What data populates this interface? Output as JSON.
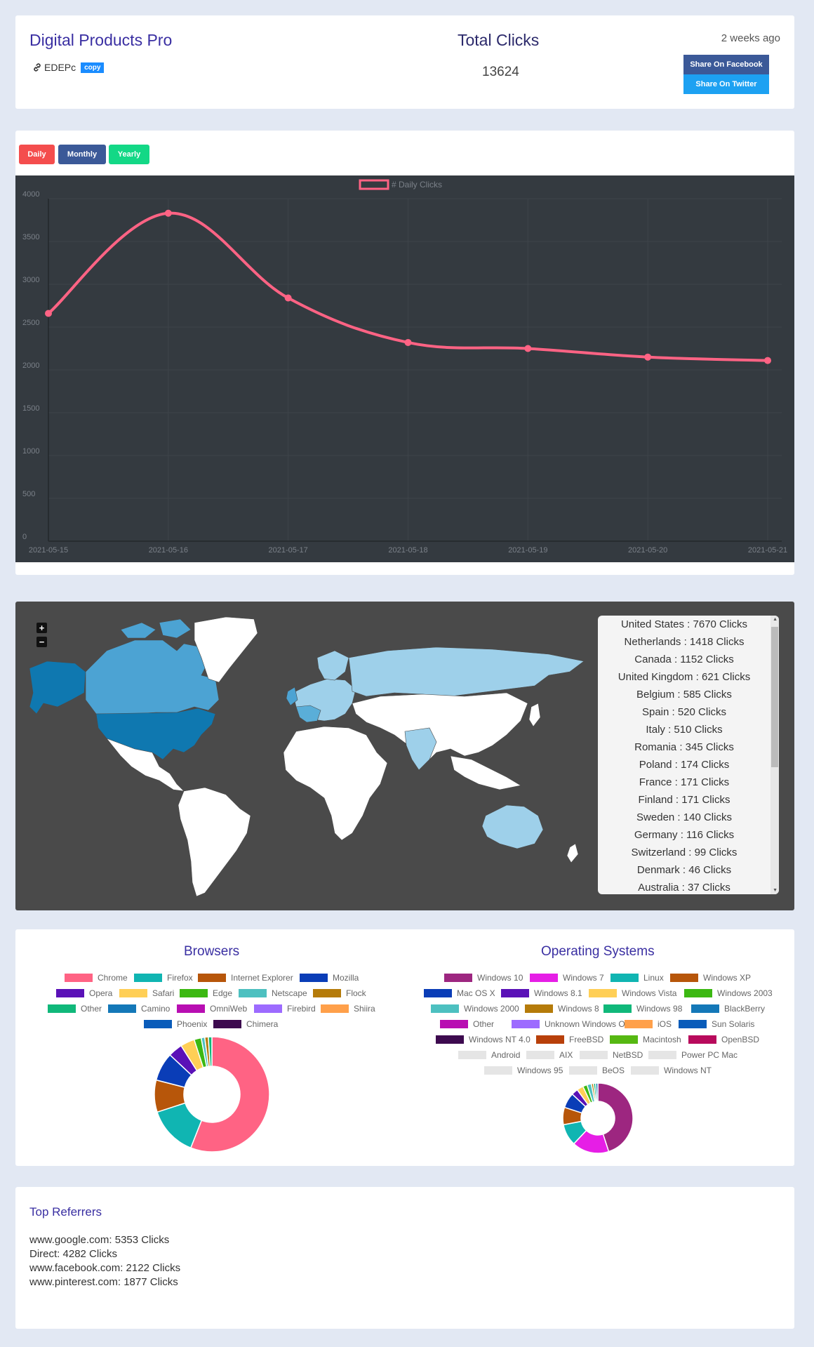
{
  "header": {
    "app_title": "Digital Products Pro",
    "short_code": "EDEPc",
    "copy_label": "copy",
    "total_title": "Total Clicks",
    "total_value": "13624",
    "time_ago": "2 weeks ago",
    "share_facebook": "Share On Facebook",
    "share_twitter": "Share On Twitter"
  },
  "period_tabs": {
    "daily": "Daily",
    "monthly": "Monthly",
    "yearly": "Yearly"
  },
  "chart_data": {
    "type": "line",
    "legend": "# Daily Clicks",
    "x": [
      "2021-05-15",
      "2021-05-16",
      "2021-05-17",
      "2021-05-18",
      "2021-05-19",
      "2021-05-20",
      "2021-05-21"
    ],
    "series": [
      {
        "name": "# Daily Clicks",
        "values": [
          2660,
          3830,
          2840,
          2320,
          2250,
          2150,
          2110
        ]
      }
    ],
    "yticks": [
      0,
      500,
      1000,
      1500,
      2000,
      2500,
      3000,
      3500,
      4000
    ],
    "ylim": [
      0,
      4000
    ],
    "grid": true,
    "line_color": "#ff6384",
    "background": "#343a40"
  },
  "map": {
    "zoom_in": "+",
    "zoom_out": "−",
    "countries": [
      "United States : 7670 Clicks",
      "Netherlands : 1418 Clicks",
      "Canada : 1152 Clicks",
      "United Kingdom : 621 Clicks",
      "Belgium : 585 Clicks",
      "Spain : 520 Clicks",
      "Italy : 510 Clicks",
      "Romania : 345 Clicks",
      "Poland : 174 Clicks",
      "France : 171 Clicks",
      "Finland : 171 Clicks",
      "Sweden : 140 Clicks",
      "Germany : 116 Clicks",
      "Switzerland : 99 Clicks",
      "Denmark : 46 Clicks",
      "Australia : 37 Clicks"
    ]
  },
  "browsers": {
    "title": "Browsers",
    "legend": [
      {
        "label": "Chrome",
        "color": "#ff6384"
      },
      {
        "label": "Firefox",
        "color": "#10b5b2"
      },
      {
        "label": "Internet Explorer",
        "color": "#b7560a"
      },
      {
        "label": "Mozilla",
        "color": "#0a3db7"
      },
      {
        "label": "Opera",
        "color": "#5a11b7"
      },
      {
        "label": "Safari",
        "color": "#ffcf56"
      },
      {
        "label": "Edge",
        "color": "#3cb812"
      },
      {
        "label": "Netscape",
        "color": "#4dc0c0"
      },
      {
        "label": "Flock",
        "color": "#b57b0a"
      },
      {
        "label": "Other",
        "color": "#10b87a"
      },
      {
        "label": "Camino",
        "color": "#1478b8"
      },
      {
        "label": "OmniWeb",
        "color": "#b80eb2"
      },
      {
        "label": "Firebird",
        "color": "#9d6bff"
      },
      {
        "label": "Shiira",
        "color": "#ffa04a"
      },
      {
        "label": "Phoenix",
        "color": "#0a5cba"
      },
      {
        "label": "Chimera",
        "color": "#3d0a4f"
      }
    ],
    "values": [
      56,
      14,
      9,
      8,
      4,
      4,
      2,
      1,
      1,
      1
    ]
  },
  "os": {
    "title": "Operating Systems",
    "legend": [
      {
        "label": "Windows 10",
        "color": "#9d2680"
      },
      {
        "label": "Windows 7",
        "color": "#e61ee6"
      },
      {
        "label": "Linux",
        "color": "#10b5b2"
      },
      {
        "label": "Windows XP",
        "color": "#b7560a"
      },
      {
        "label": "Mac OS X",
        "color": "#0a3db7"
      },
      {
        "label": "Windows 8.1",
        "color": "#5a11b7"
      },
      {
        "label": "Windows Vista",
        "color": "#ffcf56"
      },
      {
        "label": "Windows 2003",
        "color": "#3cb812"
      },
      {
        "label": "Windows 2000",
        "color": "#4dc0c0"
      },
      {
        "label": "Windows 8",
        "color": "#b57b0a"
      },
      {
        "label": "Windows 98",
        "color": "#10b87a"
      },
      {
        "label": "BlackBerry",
        "color": "#1478b8"
      },
      {
        "label": "Other",
        "color": "#b80eb2"
      },
      {
        "label": "Unknown Windows OS",
        "color": "#9d6bff"
      },
      {
        "label": "iOS",
        "color": "#ffa04a"
      },
      {
        "label": "Sun Solaris",
        "color": "#0a5cba"
      },
      {
        "label": "Windows NT 4.0",
        "color": "#3d0a4f"
      },
      {
        "label": "FreeBSD",
        "color": "#b8400a"
      },
      {
        "label": "Macintosh",
        "color": "#56b812"
      },
      {
        "label": "OpenBSD",
        "color": "#b80a5c"
      },
      {
        "label": "Android",
        "color": "#e5e5e5"
      },
      {
        "label": "AIX",
        "color": "#e5e5e5"
      },
      {
        "label": "NetBSD",
        "color": "#e5e5e5"
      },
      {
        "label": "Power PC Mac",
        "color": "#e5e5e5"
      },
      {
        "label": "Windows 95",
        "color": "#e5e5e5"
      },
      {
        "label": "BeOS",
        "color": "#e5e5e5"
      },
      {
        "label": "Windows NT",
        "color": "#e5e5e5"
      }
    ],
    "values": [
      45,
      17,
      10,
      8,
      7,
      3,
      3,
      2,
      2,
      1,
      1,
      1
    ]
  },
  "referrers": {
    "title": "Top Referrers",
    "items": [
      "www.google.com: 5353 Clicks",
      "Direct: 4282 Clicks",
      "www.facebook.com: 2122 Clicks",
      "www.pinterest.com: 1877 Clicks"
    ]
  }
}
